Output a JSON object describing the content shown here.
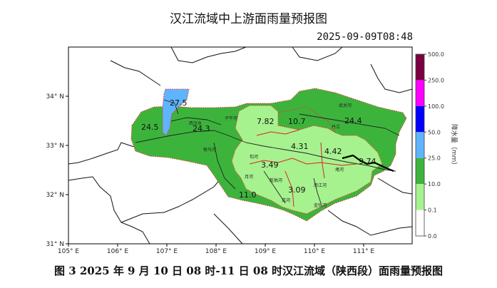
{
  "title": "汉江流域中上游面雨量预报图",
  "timestamp": "2025-09-09T08:48",
  "caption": "图 3  2025 年 9 月 10 日 08 时-11 日 08 时汉江流域（陕西段）面雨量预报图",
  "axes": {
    "lon_ticks": [
      "105° E",
      "106° E",
      "107° E",
      "108° E",
      "109° E",
      "110° E",
      "111° E"
    ],
    "lat_ticks": [
      "34° N",
      "33° N",
      "32° N",
      "31° N"
    ]
  },
  "legend": {
    "title": "降水量（mm）",
    "labels": [
      "500.0",
      "250.0",
      "100.0",
      "50.0",
      "25.0",
      "10.0",
      "0.1",
      "0.0"
    ],
    "colors": [
      "#7a0040",
      "#ff00ff",
      "#0000ff",
      "#5fb4ff",
      "#3cb43c",
      "#a6f28f",
      "#ffffff"
    ]
  },
  "basin_values": [
    {
      "label": "24.5",
      "class_color": "#3cb43c"
    },
    {
      "label": "27.5",
      "class_color": "#5fb4ff"
    },
    {
      "label": "24.3",
      "class_color": "#3cb43c"
    },
    {
      "label": "7.82",
      "class_color": "#a6f28f"
    },
    {
      "label": "10.7",
      "class_color": "#3cb43c"
    },
    {
      "label": "24.4",
      "class_color": "#3cb43c"
    },
    {
      "label": "4.31",
      "class_color": "#a6f28f"
    },
    {
      "label": "4.42",
      "class_color": "#a6f28f"
    },
    {
      "label": "3.49",
      "class_color": "#a6f28f"
    },
    {
      "label": "3.09",
      "class_color": "#a6f28f"
    },
    {
      "label": "11.0",
      "class_color": "#3cb43c"
    },
    {
      "label": "9.74",
      "class_color": "#a6f28f"
    }
  ],
  "river_labels": [
    "西汉水",
    "子午河",
    "牧马河",
    "丹江",
    "武关河",
    "旬河",
    "堵河",
    "南江河",
    "金钱河",
    "乾佑河",
    "月河",
    "岚河"
  ]
}
